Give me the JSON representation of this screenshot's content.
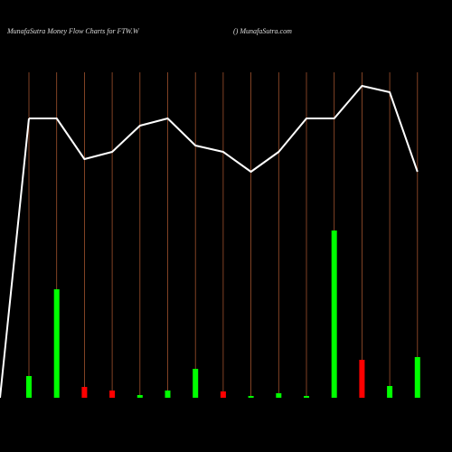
{
  "chart_data": {
    "type": "bar",
    "title": "MunafaSutra  Money Flow  Charts for FTW.W",
    "subtitle": "() MunafaSutra.com",
    "categories": [
      null,
      null,
      null,
      null,
      null,
      null,
      null,
      null,
      null,
      null,
      null,
      null,
      null,
      null,
      null
    ],
    "values": [
      24,
      120,
      12,
      8,
      3,
      8,
      32,
      7,
      2,
      5,
      2,
      185,
      42,
      13,
      45
    ],
    "colors": [
      "#00ff00",
      "#00ff00",
      "#ff0000",
      "#ff0000",
      "#00ff00",
      "#00ff00",
      "#00ff00",
      "#ff0000",
      "#00ff00",
      "#00ff00",
      "#00ff00",
      "#00ff00",
      "#ff0000",
      "#00ff00",
      "#00ff00"
    ],
    "ylim": [
      0,
      440
    ],
    "line": {
      "color": "#ffffff",
      "values": [
        309,
        309,
        264,
        272,
        301,
        309,
        279,
        272,
        250,
        272,
        309,
        309,
        345,
        338,
        250
      ]
    },
    "gridline_color": "#a0522d"
  }
}
